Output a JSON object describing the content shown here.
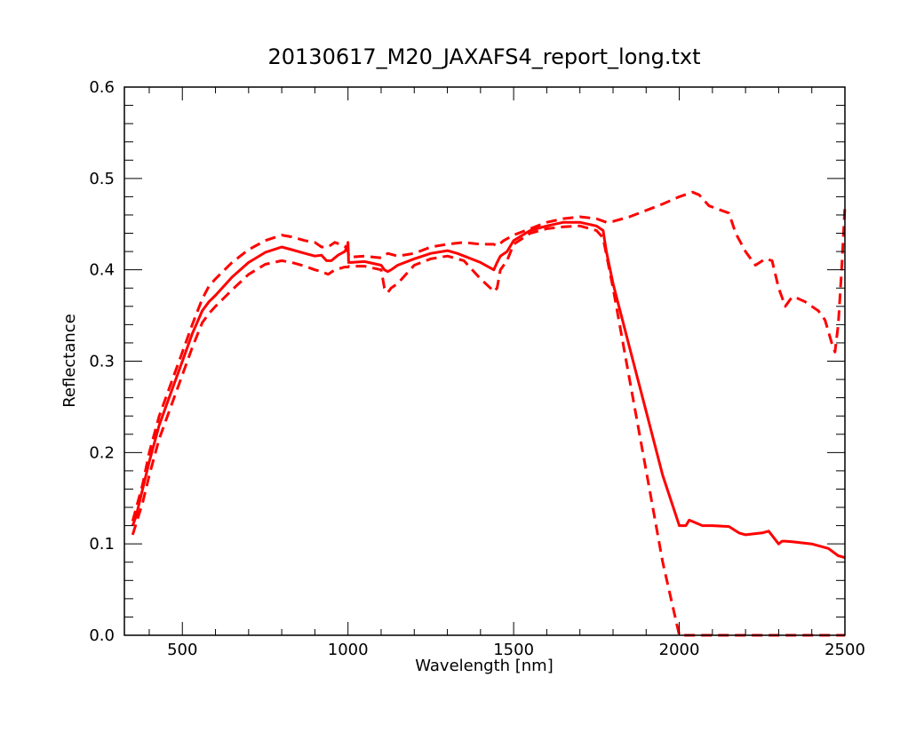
{
  "chart_data": {
    "type": "line",
    "title": "20130617_M20_JAXAFS4_report_long.txt",
    "xlabel": "Wavelength [nm]",
    "ylabel": "Reflectance",
    "xlim": [
      325,
      2500
    ],
    "ylim": [
      0,
      0.6
    ],
    "x_ticks": [
      500,
      1000,
      1500,
      2000,
      2500
    ],
    "x_tick_labels": [
      "500",
      "1000",
      "1500",
      "2000",
      "2500"
    ],
    "y_ticks": [
      0.0,
      0.1,
      0.2,
      0.3,
      0.4,
      0.5,
      0.6
    ],
    "y_tick_labels": [
      "0.0",
      "0.1",
      "0.2",
      "0.3",
      "0.4",
      "0.5",
      "0.6"
    ],
    "grid": false,
    "legend": "none",
    "line_color": "#ff0000",
    "series": [
      {
        "style": "solid",
        "x": [
          350,
          360,
          380,
          400,
          430,
          470,
          500,
          530,
          560,
          580,
          600,
          650,
          700,
          750,
          800,
          830,
          870,
          900,
          920,
          935,
          950,
          970,
          990,
          998,
          1000,
          1002,
          1010,
          1050,
          1100,
          1110,
          1120,
          1130,
          1150,
          1200,
          1250,
          1300,
          1330,
          1400,
          1440,
          1450,
          1460,
          1480,
          1500,
          1550,
          1600,
          1650,
          1700,
          1750,
          1770,
          1780,
          1800,
          1850,
          1900,
          1950,
          2000,
          2020,
          2030,
          2050,
          2070,
          2100,
          2150,
          2180,
          2200,
          2250,
          2270,
          2300,
          2310,
          2320,
          2350,
          2400,
          2450,
          2480,
          2500
        ],
        "y": [
          0.12,
          0.13,
          0.16,
          0.19,
          0.23,
          0.27,
          0.3,
          0.33,
          0.355,
          0.365,
          0.372,
          0.392,
          0.408,
          0.419,
          0.425,
          0.422,
          0.418,
          0.415,
          0.416,
          0.41,
          0.41,
          0.416,
          0.42,
          0.425,
          0.43,
          0.408,
          0.408,
          0.409,
          0.405,
          0.4,
          0.398,
          0.4,
          0.405,
          0.412,
          0.418,
          0.421,
          0.418,
          0.408,
          0.4,
          0.408,
          0.415,
          0.42,
          0.432,
          0.443,
          0.448,
          0.452,
          0.452,
          0.448,
          0.443,
          0.42,
          0.385,
          0.315,
          0.245,
          0.175,
          0.12,
          0.12,
          0.126,
          0.123,
          0.12,
          0.12,
          0.119,
          0.112,
          0.11,
          0.112,
          0.114,
          0.1,
          0.103,
          0.103,
          0.102,
          0.1,
          0.095,
          0.087,
          0.085
        ]
      },
      {
        "style": "dashed",
        "x": [
          350,
          380,
          400,
          430,
          470,
          500,
          530,
          560,
          580,
          600,
          650,
          700,
          750,
          800,
          830,
          870,
          900,
          920,
          940,
          960,
          990,
          1000,
          1003,
          1010,
          1050,
          1100,
          1120,
          1150,
          1200,
          1250,
          1300,
          1350,
          1400,
          1440,
          1450,
          1470,
          1500,
          1550,
          1600,
          1650,
          1700,
          1750,
          1780,
          1800,
          1850,
          1900,
          1950,
          2000,
          2040,
          2060,
          2070,
          2090,
          2120,
          2150,
          2170,
          2200,
          2230,
          2260,
          2280,
          2300,
          2320,
          2340,
          2350,
          2380,
          2400,
          2420,
          2440,
          2460,
          2470,
          2480,
          2490,
          2500
        ],
        "y": [
          0.125,
          0.165,
          0.2,
          0.24,
          0.28,
          0.31,
          0.34,
          0.368,
          0.382,
          0.39,
          0.408,
          0.422,
          0.432,
          0.438,
          0.436,
          0.432,
          0.43,
          0.425,
          0.425,
          0.43,
          0.426,
          0.42,
          0.414,
          0.414,
          0.415,
          0.413,
          0.418,
          0.415,
          0.418,
          0.425,
          0.428,
          0.43,
          0.428,
          0.428,
          0.426,
          0.432,
          0.438,
          0.445,
          0.452,
          0.456,
          0.458,
          0.456,
          0.452,
          0.453,
          0.458,
          0.465,
          0.472,
          0.48,
          0.485,
          0.482,
          0.478,
          0.47,
          0.466,
          0.462,
          0.44,
          0.42,
          0.405,
          0.412,
          0.41,
          0.38,
          0.36,
          0.37,
          0.37,
          0.365,
          0.36,
          0.355,
          0.345,
          0.32,
          0.31,
          0.34,
          0.4,
          0.47
        ]
      },
      {
        "style": "dashed",
        "x": [
          350,
          380,
          400,
          430,
          470,
          500,
          530,
          560,
          580,
          600,
          650,
          700,
          750,
          800,
          830,
          870,
          900,
          920,
          940,
          960,
          990,
          1000,
          1003,
          1010,
          1050,
          1100,
          1110,
          1120,
          1130,
          1150,
          1200,
          1250,
          1300,
          1350,
          1400,
          1430,
          1440,
          1450,
          1460,
          1480,
          1500,
          1550,
          1600,
          1650,
          1700,
          1750,
          1770,
          1800,
          1850,
          1900,
          1950,
          2000,
          2020,
          2030,
          2100,
          2200,
          2300,
          2400,
          2500
        ],
        "y": [
          0.11,
          0.145,
          0.175,
          0.215,
          0.255,
          0.285,
          0.315,
          0.342,
          0.352,
          0.36,
          0.378,
          0.395,
          0.406,
          0.41,
          0.408,
          0.404,
          0.4,
          0.398,
          0.395,
          0.4,
          0.403,
          0.403,
          0.404,
          0.404,
          0.404,
          0.4,
          0.38,
          0.375,
          0.38,
          0.385,
          0.405,
          0.412,
          0.415,
          0.41,
          0.39,
          0.38,
          0.376,
          0.38,
          0.4,
          0.41,
          0.428,
          0.44,
          0.445,
          0.447,
          0.448,
          0.443,
          0.435,
          0.38,
          0.28,
          0.18,
          0.08,
          0.0,
          0.0,
          0.0,
          0.0,
          0.0,
          0.0,
          0.0,
          0.0
        ]
      }
    ]
  }
}
